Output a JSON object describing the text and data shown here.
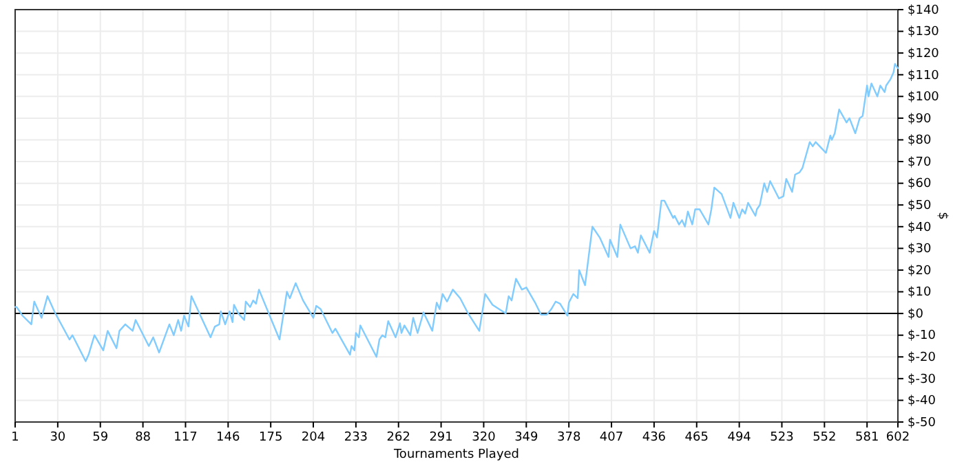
{
  "chart_data": {
    "type": "line",
    "xlabel": "Tournaments Played",
    "y2label": "$",
    "xlim": [
      1,
      602
    ],
    "xticks": [
      1,
      30,
      59,
      88,
      117,
      146,
      175,
      204,
      233,
      262,
      291,
      320,
      349,
      378,
      407,
      436,
      465,
      494,
      523,
      552,
      581,
      602
    ],
    "y2lim": [
      -50,
      140
    ],
    "y2ticks": [
      {
        "value": -50,
        "label": "$-50"
      },
      {
        "value": -40,
        "label": "$-40"
      },
      {
        "value": -30,
        "label": "$-30"
      },
      {
        "value": -20,
        "label": "$-20"
      },
      {
        "value": -10,
        "label": "$-10"
      },
      {
        "value": 0,
        "label": "$0"
      },
      {
        "value": 10,
        "label": "$10"
      },
      {
        "value": 20,
        "label": "$20"
      },
      {
        "value": 30,
        "label": "$30"
      },
      {
        "value": 40,
        "label": "$40"
      },
      {
        "value": 50,
        "label": "$50"
      },
      {
        "value": 60,
        "label": "$60"
      },
      {
        "value": 70,
        "label": "$70"
      },
      {
        "value": 80,
        "label": "$80"
      },
      {
        "value": 90,
        "label": "$90"
      },
      {
        "value": 100,
        "label": "$100"
      },
      {
        "value": 110,
        "label": "$110"
      },
      {
        "value": 120,
        "label": "$120"
      },
      {
        "value": 130,
        "label": "$130"
      },
      {
        "value": 140,
        "label": "$140"
      }
    ],
    "grid": true,
    "ref_lines": [
      {
        "axis": "y2",
        "value": 0,
        "color": "#000000"
      }
    ],
    "series": [
      {
        "axis": "y2",
        "color": "#80ccff",
        "x": [
          1,
          2,
          6,
          12,
          14,
          19,
          23,
          28,
          38,
          40,
          49,
          51,
          55,
          61,
          64,
          70,
          72,
          76,
          81,
          83,
          92,
          95,
          99,
          106,
          109,
          112,
          114,
          116,
          119,
          121,
          134,
          137,
          140,
          141,
          144,
          147,
          149,
          150,
          153,
          157,
          158,
          161,
          163,
          165,
          167,
          181,
          186,
          188,
          192,
          197,
          204,
          206,
          209,
          217,
          219,
          229,
          230,
          232,
          233,
          235,
          236,
          247,
          249,
          251,
          253,
          255,
          260,
          263,
          264,
          266,
          270,
          272,
          275,
          279,
          285,
          288,
          290,
          292,
          295,
          299,
          304,
          309,
          317,
          321,
          326,
          335,
          337,
          339,
          342,
          346,
          349,
          355,
          359,
          363,
          366,
          369,
          372,
          377,
          378,
          381,
          384,
          385,
          389,
          394,
          399,
          405,
          406,
          411,
          413,
          420,
          423,
          425,
          427,
          433,
          436,
          438,
          441,
          443,
          449,
          450,
          453,
          455,
          457,
          459,
          462,
          464,
          467,
          473,
          475,
          477,
          482,
          488,
          490,
          494,
          496,
          498,
          500,
          505,
          506,
          508,
          511,
          513,
          515,
          521,
          524,
          526,
          530,
          532,
          535,
          537,
          542,
          544,
          546,
          553,
          556,
          557,
          559,
          562,
          567,
          569,
          573,
          576,
          578,
          581,
          582,
          584,
          588,
          590,
          593,
          594,
          597,
          599,
          600,
          601,
          602
        ],
        "values": [
          3,
          3,
          -1,
          -5,
          5.5,
          -2,
          8,
          0.5,
          -12,
          -10,
          -22,
          -19,
          -10,
          -17,
          -8,
          -16,
          -8,
          -5,
          -8,
          -3,
          -15,
          -11,
          -18,
          -5,
          -10,
          -3,
          -8,
          -1,
          -6,
          8,
          -11,
          -6,
          -5,
          1,
          -5,
          1,
          -4,
          4,
          0,
          -3,
          5.5,
          3,
          6,
          4.5,
          11,
          -12,
          10,
          7,
          14,
          6,
          -2,
          3.5,
          2,
          -9,
          -7,
          -19,
          -15,
          -17,
          -9,
          -11,
          -5.5,
          -20,
          -12,
          -10,
          -11,
          -3.5,
          -11,
          -4.5,
          -9,
          -5.5,
          -10,
          -2,
          -9,
          0.5,
          -8,
          5,
          2,
          9,
          5.5,
          11,
          7,
          0.5,
          -8,
          9,
          4,
          0,
          8,
          6,
          16,
          11,
          12,
          5,
          -0.5,
          -0.5,
          2,
          5.5,
          4.5,
          -1,
          5,
          9,
          7,
          20,
          13,
          40,
          35,
          26,
          34,
          26,
          41,
          30,
          31,
          28,
          36,
          28,
          38,
          35,
          52,
          52,
          44,
          45,
          41,
          43,
          40,
          47,
          41,
          48,
          48,
          41,
          48,
          58,
          55,
          44,
          51,
          44,
          48,
          46,
          51,
          45,
          48,
          50,
          60,
          56,
          61,
          53,
          54,
          62,
          56,
          64,
          65,
          67,
          79,
          77,
          79,
          74,
          82,
          80,
          83,
          94,
          88,
          90,
          83,
          90,
          91,
          105,
          100,
          106,
          100,
          105,
          102,
          105,
          108,
          111,
          115,
          114,
          113
        ]
      }
    ]
  }
}
